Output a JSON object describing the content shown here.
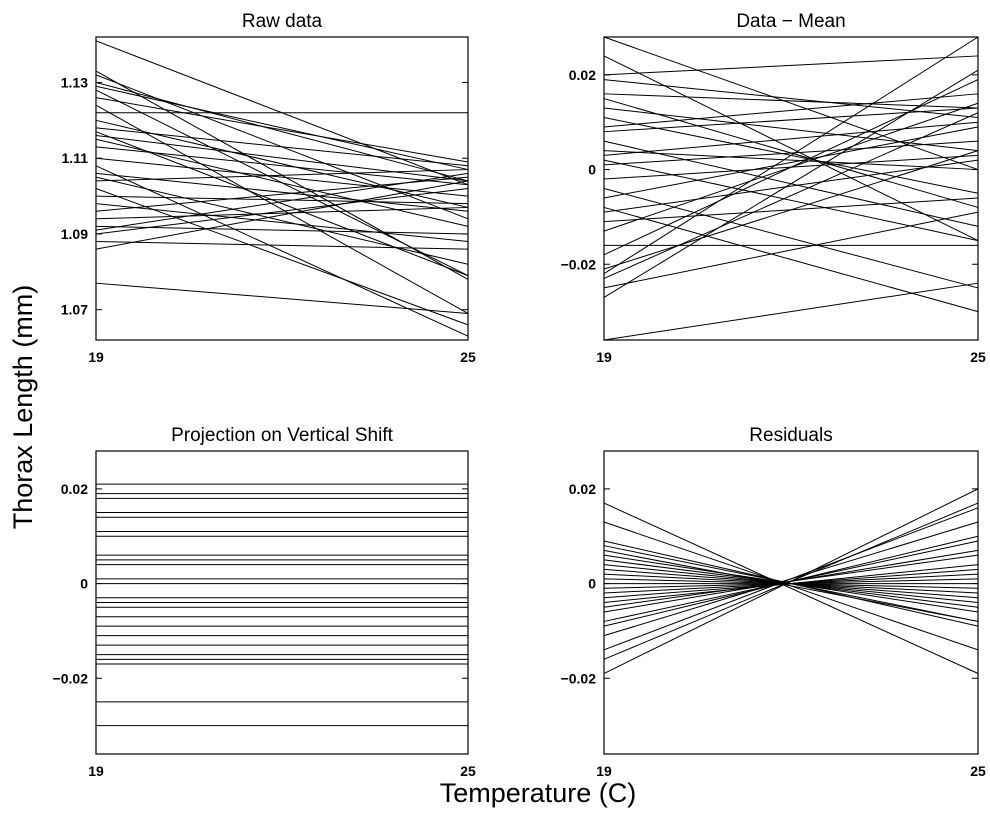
{
  "figure": {
    "ylabel": "Thorax Length (mm)",
    "xlabel": "Temperature (C)"
  },
  "chart_data": [
    {
      "type": "line",
      "title": "Raw data",
      "x": [
        19,
        25
      ],
      "xticks": [
        "19",
        "25"
      ],
      "ylim": [
        1.062,
        1.142
      ],
      "yticks": [
        1.07,
        1.09,
        1.11,
        1.13
      ],
      "ytick_labels": [
        "1.07",
        "1.09",
        "1.11",
        "1.13"
      ],
      "grid": false,
      "series": [
        {
          "values": [
            1.141,
            1.103
          ]
        },
        {
          "values": [
            1.133,
            1.078
          ]
        },
        {
          "values": [
            1.132,
            1.094
          ]
        },
        {
          "values": [
            1.13,
            1.104
          ]
        },
        {
          "values": [
            1.129,
            1.107
          ]
        },
        {
          "values": [
            1.128,
            1.079
          ]
        },
        {
          "values": [
            1.126,
            1.109
          ]
        },
        {
          "values": [
            1.124,
            1.069
          ]
        },
        {
          "values": [
            1.122,
            1.122
          ]
        },
        {
          "values": [
            1.12,
            1.097
          ]
        },
        {
          "values": [
            1.118,
            1.108
          ]
        },
        {
          "values": [
            1.117,
            1.079
          ]
        },
        {
          "values": [
            1.116,
            1.104
          ]
        },
        {
          "values": [
            1.115,
            1.092
          ]
        },
        {
          "values": [
            1.113,
            1.103
          ]
        },
        {
          "values": [
            1.11,
            1.1
          ]
        },
        {
          "values": [
            1.108,
            1.063
          ]
        },
        {
          "values": [
            1.106,
            1.096
          ]
        },
        {
          "values": [
            1.105,
            1.082
          ]
        },
        {
          "values": [
            1.104,
            1.107
          ]
        },
        {
          "values": [
            1.102,
            1.066
          ]
        },
        {
          "values": [
            1.1,
            1.098
          ]
        },
        {
          "values": [
            1.098,
            1.088
          ]
        },
        {
          "values": [
            1.096,
            1.105
          ]
        },
        {
          "values": [
            1.094,
            1.097
          ]
        },
        {
          "values": [
            1.092,
            1.09
          ]
        },
        {
          "values": [
            1.091,
            1.106
          ]
        },
        {
          "values": [
            1.09,
            1.102
          ]
        },
        {
          "values": [
            1.088,
            1.086
          ]
        },
        {
          "values": [
            1.086,
            1.104
          ]
        },
        {
          "values": [
            1.077,
            1.069
          ]
        }
      ]
    },
    {
      "type": "line",
      "title": "Data − Mean",
      "x": [
        19,
        25
      ],
      "xticks": [
        "19",
        "25"
      ],
      "ylim": [
        -0.036,
        0.028
      ],
      "yticks": [
        -0.02,
        0,
        0.02
      ],
      "ytick_labels": [
        "−0.02",
        "0",
        "0.02"
      ],
      "grid": false,
      "series": [
        {
          "values": [
            0.028,
            0.0
          ]
        },
        {
          "values": [
            0.024,
            -0.015
          ]
        },
        {
          "values": [
            0.02,
            0.024
          ]
        },
        {
          "values": [
            0.019,
            0.011
          ]
        },
        {
          "values": [
            0.016,
            0.013
          ]
        },
        {
          "values": [
            0.015,
            -0.008
          ]
        },
        {
          "values": [
            0.013,
            0.004
          ]
        },
        {
          "values": [
            0.011,
            -0.005
          ]
        },
        {
          "values": [
            0.009,
            0.016
          ]
        },
        {
          "values": [
            0.008,
            0.013
          ]
        },
        {
          "values": [
            0.006,
            -0.012
          ]
        },
        {
          "values": [
            0.004,
            0.0
          ]
        },
        {
          "values": [
            0.003,
            0.01
          ]
        },
        {
          "values": [
            0.002,
            -0.015
          ]
        },
        {
          "values": [
            0.001,
            0.006
          ]
        },
        {
          "values": [
            -0.002,
            0.003
          ]
        },
        {
          "values": [
            -0.004,
            -0.025
          ]
        },
        {
          "values": [
            -0.006,
            0.009
          ]
        },
        {
          "values": [
            -0.008,
            -0.03
          ]
        },
        {
          "values": [
            -0.009,
            0.002
          ]
        },
        {
          "values": [
            -0.011,
            -0.006
          ]
        },
        {
          "values": [
            -0.013,
            0.014
          ]
        },
        {
          "values": [
            -0.016,
            -0.016
          ]
        },
        {
          "values": [
            -0.018,
            0.019
          ]
        },
        {
          "values": [
            -0.021,
            0.004
          ]
        },
        {
          "values": [
            -0.022,
            0.028
          ]
        },
        {
          "values": [
            -0.023,
            0.012
          ]
        },
        {
          "values": [
            -0.025,
            -0.009
          ]
        },
        {
          "values": [
            -0.027,
            0.021
          ]
        },
        {
          "values": [
            -0.036,
            -0.024
          ]
        }
      ]
    },
    {
      "type": "line",
      "title": "Projection on Vertical Shift",
      "x": [
        19,
        25
      ],
      "xticks": [
        "19",
        "25"
      ],
      "ylim": [
        -0.036,
        0.028
      ],
      "yticks": [
        -0.02,
        0,
        0.02
      ],
      "ytick_labels": [
        "−0.02",
        "0",
        "0.02"
      ],
      "grid": false,
      "series": [
        {
          "values": [
            0.021,
            0.021
          ]
        },
        {
          "values": [
            0.019,
            0.019
          ]
        },
        {
          "values": [
            0.018,
            0.018
          ]
        },
        {
          "values": [
            0.015,
            0.015
          ]
        },
        {
          "values": [
            0.014,
            0.014
          ]
        },
        {
          "values": [
            0.011,
            0.011
          ]
        },
        {
          "values": [
            0.01,
            0.01
          ]
        },
        {
          "values": [
            0.006,
            0.006
          ]
        },
        {
          "values": [
            0.005,
            0.005
          ]
        },
        {
          "values": [
            0.004,
            0.004
          ]
        },
        {
          "values": [
            0.001,
            0.001
          ]
        },
        {
          "values": [
            0.0,
            0.0
          ]
        },
        {
          "values": [
            -0.003,
            -0.003
          ]
        },
        {
          "values": [
            -0.004,
            -0.004
          ]
        },
        {
          "values": [
            -0.005,
            -0.005
          ]
        },
        {
          "values": [
            -0.007,
            -0.007
          ]
        },
        {
          "values": [
            -0.009,
            -0.009
          ]
        },
        {
          "values": [
            -0.011,
            -0.011
          ]
        },
        {
          "values": [
            -0.013,
            -0.013
          ]
        },
        {
          "values": [
            -0.015,
            -0.015
          ]
        },
        {
          "values": [
            -0.016,
            -0.016
          ]
        },
        {
          "values": [
            -0.017,
            -0.017
          ]
        },
        {
          "values": [
            -0.025,
            -0.025
          ]
        },
        {
          "values": [
            -0.03,
            -0.03
          ]
        }
      ]
    },
    {
      "type": "line",
      "title": "Residuals",
      "x": [
        19,
        25
      ],
      "xticks": [
        "19",
        "25"
      ],
      "ylim": [
        -0.036,
        0.028
      ],
      "yticks": [
        -0.02,
        0,
        0.02
      ],
      "ytick_labels": [
        "−0.02",
        "0",
        "0.02"
      ],
      "grid": false,
      "series": [
        {
          "values": [
            0.017,
            -0.019
          ]
        },
        {
          "values": [
            0.013,
            -0.014
          ]
        },
        {
          "values": [
            0.009,
            -0.009
          ]
        },
        {
          "values": [
            0.008,
            -0.008
          ]
        },
        {
          "values": [
            0.007,
            -0.008
          ]
        },
        {
          "values": [
            0.006,
            -0.006
          ]
        },
        {
          "values": [
            0.005,
            -0.005
          ]
        },
        {
          "values": [
            0.004,
            -0.004
          ]
        },
        {
          "values": [
            0.003,
            -0.003
          ]
        },
        {
          "values": [
            0.002,
            -0.002
          ]
        },
        {
          "values": [
            0.001,
            -0.001
          ]
        },
        {
          "values": [
            0.0,
            0.0
          ]
        },
        {
          "values": [
            -0.001,
            0.001
          ]
        },
        {
          "values": [
            -0.002,
            0.002
          ]
        },
        {
          "values": [
            -0.003,
            0.003
          ]
        },
        {
          "values": [
            -0.004,
            0.004
          ]
        },
        {
          "values": [
            -0.005,
            0.006
          ]
        },
        {
          "values": [
            -0.006,
            0.007
          ]
        },
        {
          "values": [
            -0.008,
            0.009
          ]
        },
        {
          "values": [
            -0.009,
            0.01
          ]
        },
        {
          "values": [
            -0.011,
            0.013
          ]
        },
        {
          "values": [
            -0.014,
            0.016
          ]
        },
        {
          "values": [
            -0.016,
            0.017
          ]
        },
        {
          "values": [
            -0.019,
            0.02
          ]
        }
      ]
    }
  ]
}
